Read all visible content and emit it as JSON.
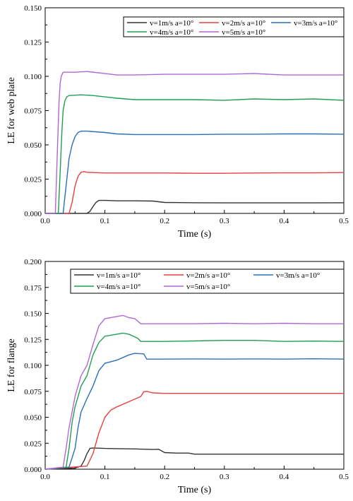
{
  "chart_data": [
    {
      "type": "line",
      "title": "",
      "xlabel": "Time (s)",
      "ylabel": "LE for web plate",
      "xlim": [
        0,
        0.5
      ],
      "ylim": [
        0,
        0.15
      ],
      "xticks": [
        "0.0",
        "0.1",
        "0.2",
        "0.3",
        "0.4",
        "0.5"
      ],
      "yticks": [
        "0.000",
        "0.025",
        "0.050",
        "0.075",
        "0.100",
        "0.125",
        "0.150"
      ],
      "legend_position": "top-right",
      "series": [
        {
          "name": "v=1m/s  a=10°",
          "color": "#333333",
          "x": [
            0,
            0.07,
            0.075,
            0.08,
            0.085,
            0.09,
            0.1,
            0.12,
            0.15,
            0.18,
            0.2,
            0.25,
            0.3,
            0.35,
            0.4,
            0.45,
            0.5
          ],
          "y": [
            0,
            0,
            0.0015,
            0.005,
            0.008,
            0.0095,
            0.0095,
            0.0092,
            0.0092,
            0.009,
            0.008,
            0.0078,
            0.0077,
            0.0077,
            0.0077,
            0.0077,
            0.0078
          ]
        },
        {
          "name": "v=2m/s  a=10°",
          "color": "#e8413f",
          "x": [
            0,
            0.04,
            0.045,
            0.05,
            0.055,
            0.06,
            0.065,
            0.07,
            0.1,
            0.15,
            0.2,
            0.25,
            0.3,
            0.35,
            0.4,
            0.45,
            0.5
          ],
          "y": [
            0,
            0,
            0.008,
            0.02,
            0.027,
            0.03,
            0.0305,
            0.03,
            0.0295,
            0.0295,
            0.0295,
            0.0293,
            0.0293,
            0.0295,
            0.0296,
            0.0296,
            0.0298
          ]
        },
        {
          "name": "v=3m/s  a=10°",
          "color": "#2a6ebd",
          "x": [
            0,
            0.03,
            0.035,
            0.04,
            0.045,
            0.05,
            0.055,
            0.06,
            0.07,
            0.1,
            0.12,
            0.15,
            0.2,
            0.25,
            0.3,
            0.35,
            0.4,
            0.45,
            0.5
          ],
          "y": [
            0,
            0,
            0.02,
            0.04,
            0.05,
            0.056,
            0.059,
            0.06,
            0.06,
            0.059,
            0.058,
            0.0575,
            0.0575,
            0.0575,
            0.0578,
            0.0578,
            0.058,
            0.058,
            0.0578
          ]
        },
        {
          "name": "v=4m/s  a=10°",
          "color": "#1f9e52",
          "x": [
            0,
            0.022,
            0.025,
            0.028,
            0.03,
            0.033,
            0.036,
            0.04,
            0.06,
            0.08,
            0.1,
            0.12,
            0.15,
            0.2,
            0.25,
            0.3,
            0.35,
            0.4,
            0.45,
            0.5
          ],
          "y": [
            0,
            0,
            0.03,
            0.06,
            0.075,
            0.082,
            0.085,
            0.086,
            0.0865,
            0.086,
            0.085,
            0.084,
            0.083,
            0.083,
            0.083,
            0.0825,
            0.0835,
            0.083,
            0.0835,
            0.0825
          ]
        },
        {
          "name": "v=5m/s  a=10°",
          "color": "#b067d6",
          "x": [
            0,
            0.017,
            0.02,
            0.023,
            0.025,
            0.027,
            0.03,
            0.035,
            0.05,
            0.07,
            0.1,
            0.12,
            0.15,
            0.2,
            0.25,
            0.3,
            0.35,
            0.4,
            0.45,
            0.5
          ],
          "y": [
            0,
            0,
            0.04,
            0.08,
            0.095,
            0.1,
            0.103,
            0.103,
            0.103,
            0.1035,
            0.102,
            0.101,
            0.101,
            0.1015,
            0.1015,
            0.1015,
            0.102,
            0.101,
            0.101,
            0.101
          ]
        }
      ]
    },
    {
      "type": "line",
      "title": "",
      "xlabel": "Time (s)",
      "ylabel": "LE for flange",
      "xlim": [
        0,
        0.5
      ],
      "ylim": [
        0,
        0.2
      ],
      "xticks": [
        "0.0",
        "0.1",
        "0.2",
        "0.3",
        "0.4",
        "0.5"
      ],
      "yticks": [
        "0.000",
        "0.025",
        "0.050",
        "0.075",
        "0.100",
        "0.125",
        "0.150",
        "0.175",
        "0.200"
      ],
      "legend_position": "top-right",
      "series": [
        {
          "name": "v=1m/s  a=10°",
          "color": "#333333",
          "x": [
            0,
            0.05,
            0.06,
            0.065,
            0.07,
            0.075,
            0.08,
            0.1,
            0.12,
            0.15,
            0.18,
            0.19,
            0.2,
            0.22,
            0.24,
            0.25,
            0.3,
            0.35,
            0.4,
            0.45,
            0.5
          ],
          "y": [
            0,
            0.001,
            0.003,
            0.008,
            0.015,
            0.02,
            0.0205,
            0.02,
            0.0198,
            0.0195,
            0.019,
            0.0192,
            0.016,
            0.0155,
            0.0155,
            0.0145,
            0.0145,
            0.0145,
            0.0145,
            0.0145,
            0.0145
          ]
        },
        {
          "name": "v=2m/s  a=10°",
          "color": "#e8413f",
          "x": [
            0,
            0.07,
            0.08,
            0.09,
            0.1,
            0.11,
            0.12,
            0.14,
            0.16,
            0.165,
            0.17,
            0.18,
            0.2,
            0.25,
            0.3,
            0.35,
            0.4,
            0.45,
            0.5
          ],
          "y": [
            0,
            0.003,
            0.015,
            0.035,
            0.05,
            0.057,
            0.06,
            0.065,
            0.07,
            0.0745,
            0.075,
            0.0735,
            0.073,
            0.073,
            0.073,
            0.073,
            0.073,
            0.073,
            0.073
          ]
        },
        {
          "name": "v=3m/s  a=10°",
          "color": "#2a6ebd",
          "x": [
            0,
            0.04,
            0.05,
            0.055,
            0.06,
            0.07,
            0.08,
            0.09,
            0.1,
            0.12,
            0.14,
            0.15,
            0.165,
            0.17,
            0.175,
            0.2,
            0.25,
            0.3,
            0.35,
            0.4,
            0.45,
            0.5
          ],
          "y": [
            0,
            0.002,
            0.02,
            0.04,
            0.055,
            0.068,
            0.08,
            0.095,
            0.102,
            0.105,
            0.11,
            0.1115,
            0.111,
            0.106,
            0.106,
            0.106,
            0.1062,
            0.106,
            0.1062,
            0.106,
            0.1063,
            0.106
          ]
        },
        {
          "name": "v=4m/s  a=10°",
          "color": "#1f9e52",
          "x": [
            0,
            0.035,
            0.04,
            0.045,
            0.05,
            0.06,
            0.07,
            0.08,
            0.09,
            0.1,
            0.12,
            0.13,
            0.14,
            0.155,
            0.16,
            0.2,
            0.25,
            0.3,
            0.35,
            0.4,
            0.45,
            0.5
          ],
          "y": [
            0,
            0.002,
            0.02,
            0.045,
            0.06,
            0.08,
            0.09,
            0.11,
            0.122,
            0.128,
            0.13,
            0.131,
            0.13,
            0.126,
            0.123,
            0.123,
            0.1235,
            0.124,
            0.124,
            0.123,
            0.1233,
            0.123
          ]
        },
        {
          "name": "v=5m/s  a=10°",
          "color": "#b067d6",
          "x": [
            0,
            0.03,
            0.035,
            0.04,
            0.045,
            0.05,
            0.06,
            0.07,
            0.08,
            0.09,
            0.1,
            0.12,
            0.13,
            0.14,
            0.15,
            0.16,
            0.2,
            0.25,
            0.3,
            0.35,
            0.4,
            0.45,
            0.5
          ],
          "y": [
            0,
            0.002,
            0.02,
            0.04,
            0.055,
            0.07,
            0.09,
            0.1,
            0.12,
            0.138,
            0.145,
            0.147,
            0.148,
            0.146,
            0.145,
            0.14,
            0.14,
            0.14,
            0.1405,
            0.14,
            0.1405,
            0.14,
            0.14
          ]
        }
      ]
    }
  ]
}
